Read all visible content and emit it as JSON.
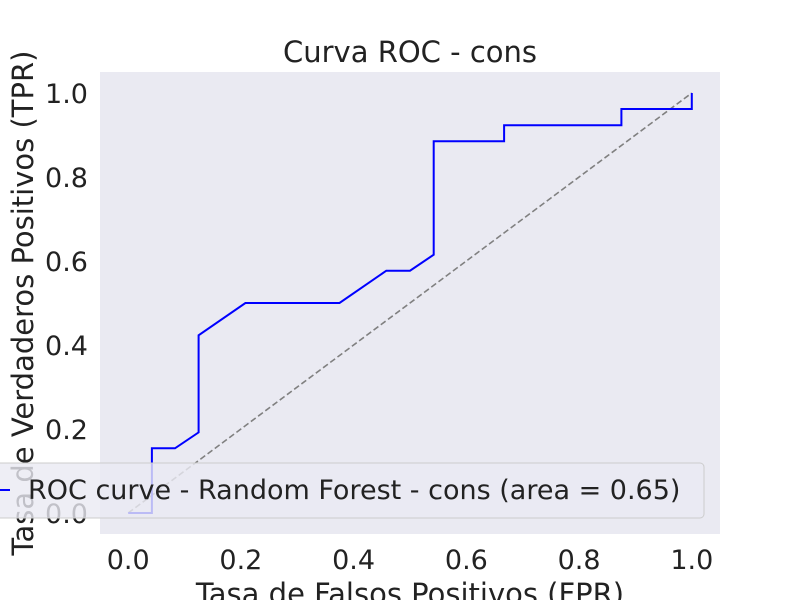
{
  "chart_data": {
    "type": "line",
    "title": "Curva ROC - cons",
    "xlabel": "Tasa de Falsos Positivos (FPR)",
    "ylabel": "Tasa de Verdaderos Positivos (TPR)",
    "xlim": [
      -0.05,
      1.05
    ],
    "ylim": [
      -0.05,
      1.05
    ],
    "xticks": [
      0.0,
      0.2,
      0.4,
      0.6,
      0.8,
      1.0
    ],
    "yticks": [
      0.0,
      0.2,
      0.4,
      0.6,
      0.8,
      1.0
    ],
    "xtick_labels": [
      "0.0",
      "0.2",
      "0.4",
      "0.6",
      "0.8",
      "1.0"
    ],
    "ytick_labels": [
      "0.0",
      "0.2",
      "0.4",
      "0.6",
      "0.8",
      "1.0"
    ],
    "grid": false,
    "legend_position": "lower-right",
    "series": [
      {
        "name": "ROC curve - Random Forest - cons (area = 0.65)",
        "color": "#0000ff",
        "style": "solid",
        "x": [
          0.0,
          0.042,
          0.042,
          0.083,
          0.125,
          0.125,
          0.208,
          0.375,
          0.458,
          0.5,
          0.542,
          0.542,
          0.667,
          0.667,
          0.875,
          0.875,
          1.0,
          1.0
        ],
        "y": [
          0.0,
          0.0,
          0.154,
          0.154,
          0.192,
          0.423,
          0.5,
          0.5,
          0.577,
          0.577,
          0.615,
          0.885,
          0.885,
          0.923,
          0.923,
          0.962,
          0.962,
          1.0
        ]
      },
      {
        "color": "#808080",
        "style": "dashed",
        "x": [
          0.0,
          1.0
        ],
        "y": [
          0.0,
          1.0
        ]
      }
    ]
  }
}
